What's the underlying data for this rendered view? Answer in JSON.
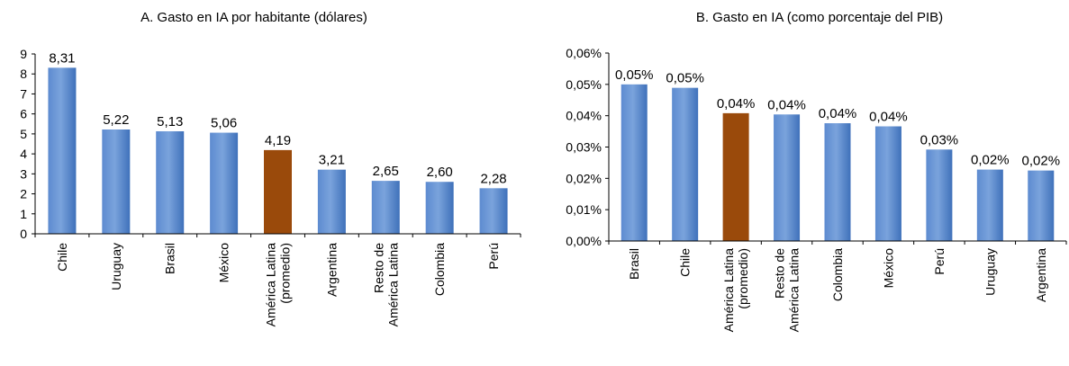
{
  "colors": {
    "bar_gradient_light": "#6f9ad6",
    "bar_gradient_dark": "#3c6fb8",
    "highlight": "#9a4a0b"
  },
  "chart_data": [
    {
      "type": "bar",
      "title": "A. Gasto en IA por habitante (dólares)",
      "categories": [
        "Chile",
        "Uruguay",
        "Brasil",
        "México",
        "América Latina|(promedio)",
        "Argentina",
        "Resto de|América Latina",
        "Colombia",
        "Perú"
      ],
      "values": [
        8.31,
        5.22,
        5.13,
        5.06,
        4.19,
        3.21,
        2.65,
        2.6,
        2.28
      ],
      "data_labels": [
        "8,31",
        "5,22",
        "5,13",
        "5,06",
        "4,19",
        "3,21",
        "2,65",
        "2,60",
        "2,28"
      ],
      "highlight_index": 4,
      "ylim": [
        0,
        9
      ],
      "yticks": [
        0,
        1,
        2,
        3,
        4,
        5,
        6,
        7,
        8,
        9
      ],
      "ytick_labels": [
        "0",
        "1",
        "2",
        "3",
        "4",
        "5",
        "6",
        "7",
        "8",
        "9"
      ],
      "xlabel": "",
      "ylabel": "",
      "grid": false
    },
    {
      "type": "bar",
      "title": "B. Gasto en IA (como porcentaje del PIB)",
      "categories": [
        "Brasil",
        "Chile",
        "América Latina|(promedio)",
        "Resto de|América Latina",
        "Colombia",
        "México",
        "Perú",
        "Uruguay",
        "Argentina"
      ],
      "values": [
        0.05,
        0.0489,
        0.0408,
        0.0404,
        0.0376,
        0.0366,
        0.0292,
        0.0228,
        0.0225
      ],
      "data_labels": [
        "0,05%",
        "0,05%",
        "0,04%",
        "0,04%",
        "0,04%",
        "0,04%",
        "0,03%",
        "0,02%",
        "0,02%"
      ],
      "highlight_index": 2,
      "ylim": [
        0,
        0.06
      ],
      "yticks": [
        0,
        0.01,
        0.02,
        0.03,
        0.04,
        0.05,
        0.06
      ],
      "ytick_labels": [
        "0,00%",
        "0,01%",
        "0,02%",
        "0,03%",
        "0,04%",
        "0,05%",
        "0,06%"
      ],
      "xlabel": "",
      "ylabel": "",
      "grid": false
    }
  ]
}
